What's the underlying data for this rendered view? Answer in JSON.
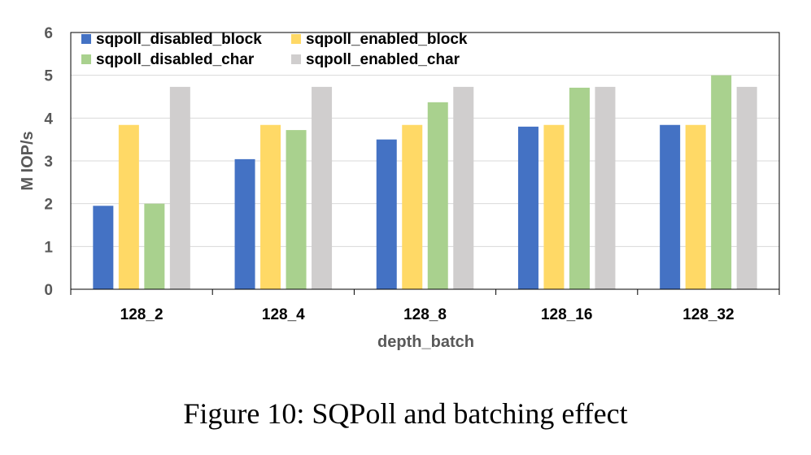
{
  "chart_data": {
    "type": "bar",
    "categories": [
      "128_2",
      "128_4",
      "128_8",
      "128_16",
      "128_32"
    ],
    "series": [
      {
        "name": "sqpoll_disabled_block",
        "color": "#4472C4",
        "values": [
          1.95,
          3.04,
          3.5,
          3.8,
          3.84
        ]
      },
      {
        "name": "sqpoll_enabled_block",
        "color": "#FFD966",
        "values": [
          3.84,
          3.84,
          3.84,
          3.84,
          3.84
        ]
      },
      {
        "name": "sqpoll_disabled_char",
        "color": "#A9D18E",
        "values": [
          2.0,
          3.72,
          4.37,
          4.71,
          5.0
        ]
      },
      {
        "name": "sqpoll_enabled_char",
        "color": "#D0CECE",
        "values": [
          4.73,
          4.73,
          4.73,
          4.73,
          4.73
        ]
      }
    ],
    "xlabel": "depth_batch",
    "ylabel": "M IOP/s",
    "ylim": [
      0,
      6
    ],
    "yticks": [
      0,
      1,
      2,
      3,
      4,
      5,
      6
    ],
    "grid": true,
    "legend": "top-left"
  },
  "caption": "Figure 10: SQPoll and batching effect"
}
